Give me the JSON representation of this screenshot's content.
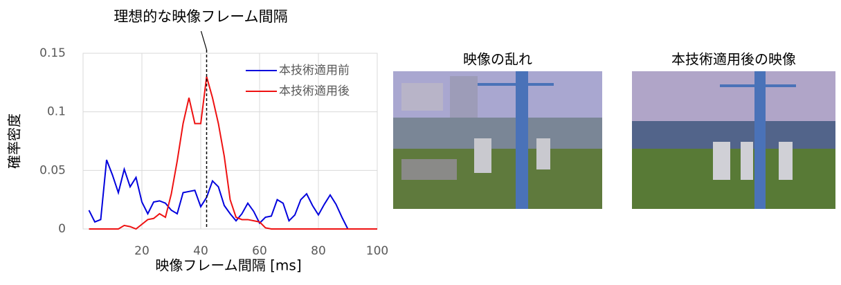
{
  "chart_data": {
    "type": "line",
    "x": [
      2,
      4,
      6,
      8,
      10,
      12,
      14,
      16,
      18,
      20,
      22,
      24,
      26,
      28,
      30,
      32,
      34,
      36,
      38,
      40,
      42,
      44,
      46,
      48,
      50,
      52,
      54,
      56,
      58,
      60,
      62,
      64,
      66,
      68,
      70,
      72,
      74,
      76,
      78,
      80,
      82,
      84,
      86,
      88,
      90,
      92,
      94,
      96,
      98,
      100
    ],
    "series": [
      {
        "name": "本技術適用前",
        "color": "#0000dd",
        "values": [
          0.016,
          0.006,
          0.008,
          0.059,
          0.046,
          0.031,
          0.051,
          0.036,
          0.044,
          0.023,
          0.013,
          0.023,
          0.024,
          0.022,
          0.016,
          0.013,
          0.031,
          0.032,
          0.033,
          0.019,
          0.027,
          0.041,
          0.036,
          0.02,
          0.013,
          0.007,
          0.013,
          0.022,
          0.015,
          0.005,
          0.01,
          0.011,
          0.025,
          0.022,
          0.007,
          0.012,
          0.025,
          0.03,
          0.02,
          0.012,
          0.021,
          0.029,
          0.021,
          0.01,
          0,
          0,
          0,
          0,
          0,
          0
        ]
      },
      {
        "name": "本技術適用後",
        "color": "#ee1111",
        "values": [
          0,
          0,
          0,
          0,
          0,
          0,
          0.003,
          0.002,
          0,
          0.004,
          0.008,
          0.009,
          0.013,
          0.01,
          0.03,
          0.058,
          0.09,
          0.112,
          0.09,
          0.09,
          0.13,
          0.112,
          0.09,
          0.062,
          0.025,
          0.01,
          0.008,
          0.008,
          0.007,
          0.006,
          0.001,
          0,
          0,
          0,
          0,
          0,
          0,
          0,
          0,
          0,
          0,
          0,
          0,
          0,
          0,
          0,
          0,
          0,
          0,
          0
        ]
      }
    ],
    "xlim": [
      0,
      100
    ],
    "xticks": [
      20,
      40,
      60,
      80,
      100
    ],
    "ylim": [
      0,
      0.15
    ],
    "yticks": [
      0,
      0.05,
      0.1,
      0.15
    ],
    "grid": true,
    "legend": "top-right",
    "xlabel": "映像フレーム間隔 [ms]",
    "ylabel": "確率密度",
    "annotation": {
      "text": "理想的な映像フレーム間隔",
      "x": 42
    }
  },
  "images": [
    {
      "title": "映像の乱れ"
    },
    {
      "title": "本技術適用後の映像"
    }
  ]
}
